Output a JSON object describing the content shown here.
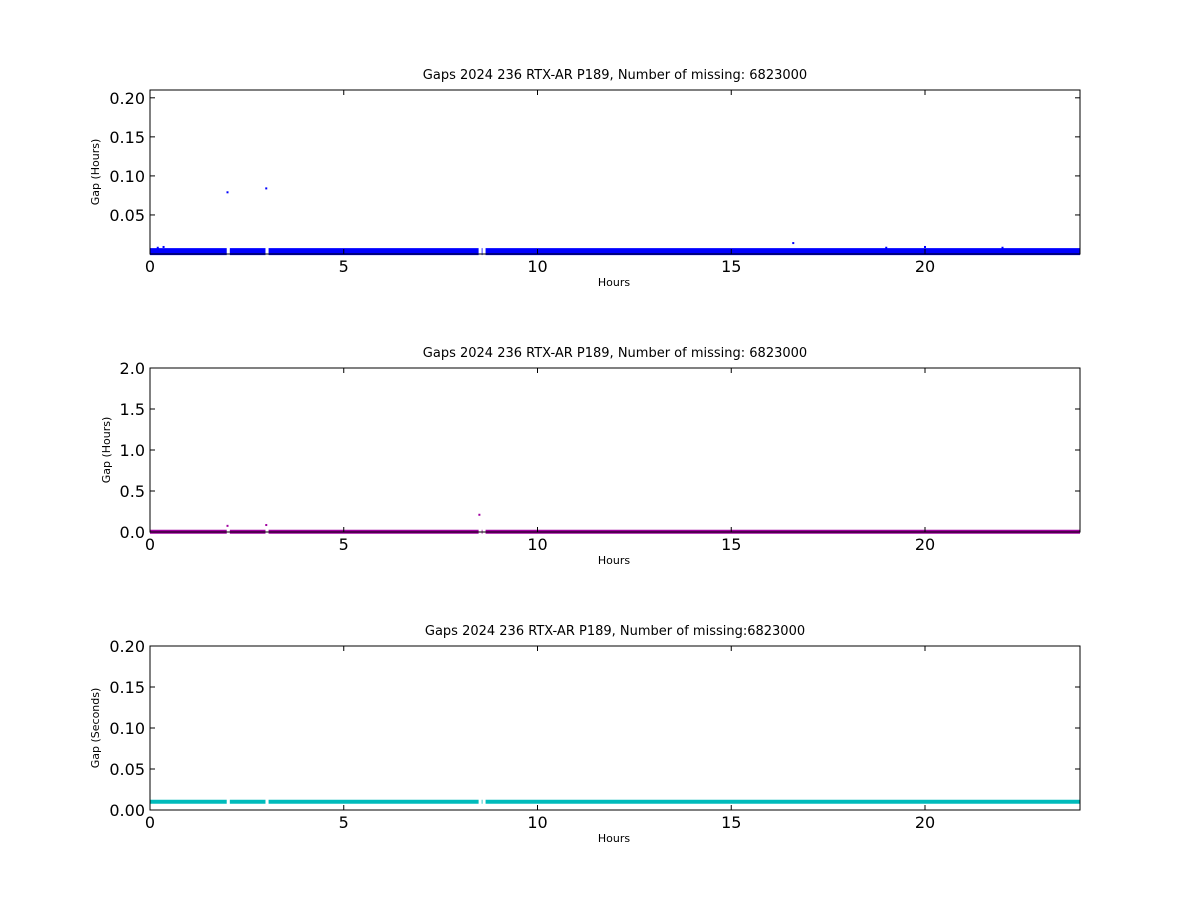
{
  "chart_data": [
    {
      "type": "scatter",
      "title": "Gaps 2024 236 RTX-AR  P189, Number of missing: 6823000",
      "xlabel": "Hours",
      "ylabel": "Gap (Hours)",
      "xlim": [
        0,
        24
      ],
      "ylim": [
        0,
        0.21
      ],
      "xticks": [
        "0",
        "5",
        "10",
        "15",
        "20"
      ],
      "yticks": [
        "0.05",
        "0.10",
        "0.15",
        "0.20"
      ],
      "grid": false,
      "color": "#0000ff",
      "baseline": {
        "value": 0.003,
        "x_start": 0,
        "x_end": 24,
        "gaps_x": [
          2.0,
          3.0,
          8.5,
          8.6
        ]
      },
      "points": [
        {
          "x": 0.2,
          "y": 0.008
        },
        {
          "x": 0.35,
          "y": 0.009
        },
        {
          "x": 2.0,
          "y": 0.079
        },
        {
          "x": 3.0,
          "y": 0.084
        },
        {
          "x": 16.6,
          "y": 0.014
        },
        {
          "x": 19.0,
          "y": 0.008
        },
        {
          "x": 20.0,
          "y": 0.009
        },
        {
          "x": 22.0,
          "y": 0.008
        }
      ]
    },
    {
      "type": "scatter",
      "title": "Gaps 2024 236 RTX-AR  P189, Number of missing: 6823000",
      "xlabel": "Hours",
      "ylabel": "Gap (Hours)",
      "xlim": [
        0,
        24
      ],
      "ylim": [
        0,
        2.0
      ],
      "xticks": [
        "0",
        "5",
        "10",
        "15",
        "20"
      ],
      "yticks": [
        "0.0",
        "0.5",
        "1.0",
        "1.5",
        "2.0"
      ],
      "grid": false,
      "color": "#a000a0",
      "baseline": {
        "value": 0.003,
        "x_start": 0,
        "x_end": 24,
        "gaps_x": [
          2.0,
          3.0,
          8.5,
          8.6
        ]
      },
      "points": [
        {
          "x": 2.0,
          "y": 0.075
        },
        {
          "x": 3.0,
          "y": 0.085
        },
        {
          "x": 8.5,
          "y": 0.21
        }
      ]
    },
    {
      "type": "scatter",
      "title": "Gaps 2024 236 RTX-AR  P189, Number of missing:6823000",
      "xlabel": "Hours",
      "ylabel": "Gap (Seconds)",
      "xlim": [
        0,
        24
      ],
      "ylim": [
        0,
        0.2
      ],
      "xticks": [
        "0",
        "5",
        "10",
        "15",
        "20"
      ],
      "yticks": [
        "0.00",
        "0.05",
        "0.10",
        "0.15",
        "0.20"
      ],
      "grid": false,
      "color": "#00bbbb",
      "baseline": {
        "value": 0.01,
        "x_start": 0,
        "x_end": 24,
        "gaps_x": [
          2.0,
          3.0,
          8.5,
          8.6
        ]
      },
      "points": []
    }
  ]
}
